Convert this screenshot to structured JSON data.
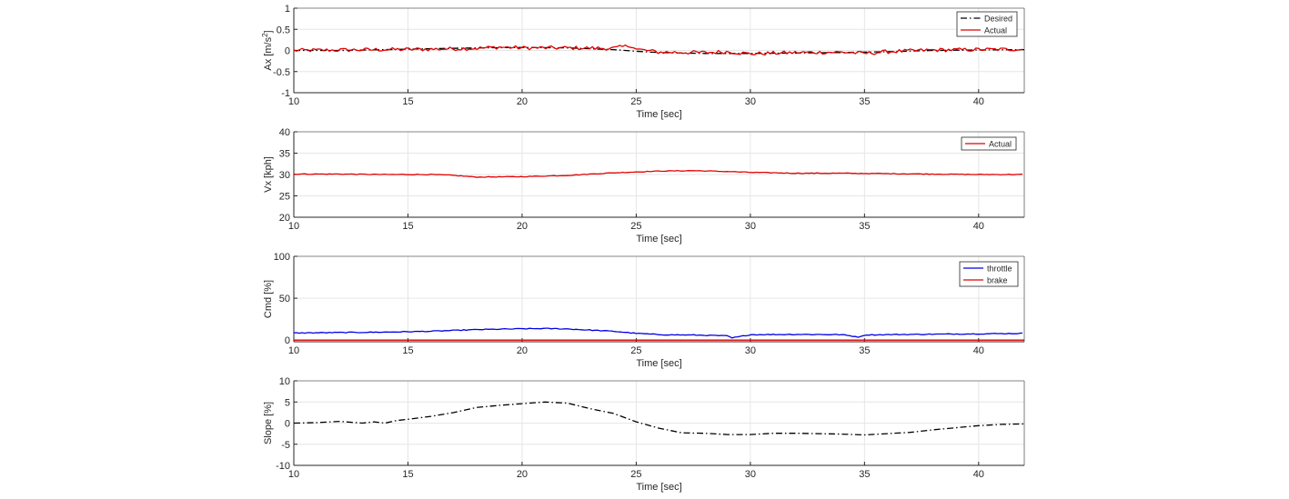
{
  "chart_data": [
    {
      "type": "line",
      "xlabel": "Time [sec]",
      "ylabel": "Ax [m/s",
      "ylabel_sup": "2",
      "ylabel_end": "]",
      "xlim": [
        10,
        42
      ],
      "ylim": [
        -1,
        1
      ],
      "xticks": [
        10,
        15,
        20,
        25,
        30,
        35,
        40
      ],
      "yticks": [
        -1,
        -0.5,
        0,
        0.5,
        1
      ],
      "ytick_labels": [
        "-1",
        "-0.5",
        "0",
        "0.5",
        "1"
      ],
      "grid": true,
      "legend": "top-right",
      "series": [
        {
          "name": "Desired",
          "color": "#000000",
          "style": "dashdot",
          "x": [
            10,
            12,
            14,
            16,
            18,
            20,
            22,
            24,
            25,
            26,
            28,
            30,
            32,
            34,
            36,
            38,
            40,
            42
          ],
          "y": [
            0.0,
            0.0,
            0.02,
            0.04,
            0.06,
            0.07,
            0.06,
            0.02,
            -0.02,
            -0.05,
            -0.07,
            -0.07,
            -0.06,
            -0.05,
            -0.03,
            0.0,
            0.01,
            0.02
          ]
        },
        {
          "name": "Actual",
          "color": "#e00000",
          "style": "solid",
          "noisy": true,
          "noise_amp": 0.045,
          "x": [
            10,
            12,
            14,
            16,
            18,
            19,
            20,
            22,
            24,
            24.8,
            25,
            26,
            28,
            29,
            30,
            32,
            34,
            35,
            36,
            38,
            40,
            42
          ],
          "y": [
            0.0,
            0.01,
            0.02,
            0.03,
            0.05,
            0.08,
            0.06,
            0.06,
            0.05,
            0.12,
            0.03,
            -0.04,
            -0.05,
            -0.03,
            -0.08,
            -0.05,
            -0.04,
            -0.07,
            -0.03,
            0.01,
            0.02,
            0.03
          ]
        }
      ]
    },
    {
      "type": "line",
      "xlabel": "Time [sec]",
      "ylabel": "Vx [kph]",
      "xlim": [
        10,
        42
      ],
      "ylim": [
        20,
        40
      ],
      "xticks": [
        10,
        15,
        20,
        25,
        30,
        35,
        40
      ],
      "yticks": [
        20,
        25,
        30,
        35,
        40
      ],
      "ytick_labels": [
        "20",
        "25",
        "30",
        "35",
        "40"
      ],
      "grid": true,
      "legend": "top-right",
      "series": [
        {
          "name": "Actual",
          "color": "#e00000",
          "style": "solid",
          "noisy": true,
          "noise_amp": 0.08,
          "x": [
            10,
            12,
            14,
            16,
            17,
            18,
            20,
            22,
            24,
            26,
            27.5,
            29,
            30,
            32,
            34,
            36,
            38,
            40,
            42
          ],
          "y": [
            30.1,
            30.1,
            30.0,
            30.0,
            29.8,
            29.4,
            29.5,
            29.8,
            30.4,
            30.8,
            30.9,
            30.7,
            30.5,
            30.3,
            30.3,
            30.2,
            30.1,
            30.0,
            30.0
          ]
        }
      ]
    },
    {
      "type": "line",
      "xlabel": "Time [sec]",
      "ylabel": "Cmd [%]",
      "xlim": [
        10,
        42
      ],
      "ylim": [
        -2,
        100
      ],
      "xticks": [
        10,
        15,
        20,
        25,
        30,
        35,
        40
      ],
      "yticks": [
        0,
        50,
        100
      ],
      "ytick_labels": [
        "0",
        "50",
        "100"
      ],
      "grid": true,
      "legend": "top-right",
      "series": [
        {
          "name": "throttle",
          "color": "#0000e0",
          "style": "solid",
          "noisy": true,
          "noise_amp": 0.5,
          "x": [
            10,
            12,
            14,
            16,
            18,
            20,
            21,
            22,
            24,
            25,
            26,
            28,
            29,
            29.2,
            30,
            32,
            34,
            34.8,
            35,
            36,
            38,
            40,
            42
          ],
          "y": [
            8.5,
            9,
            9.5,
            10.5,
            12.5,
            13.5,
            13.8,
            13.3,
            10.5,
            8,
            6.5,
            5.8,
            5,
            2.5,
            6.5,
            6.8,
            6.5,
            3.5,
            6.2,
            6.5,
            7,
            7.5,
            8
          ]
        },
        {
          "name": "brake",
          "color": "#e00000",
          "style": "solid",
          "x": [
            10,
            42
          ],
          "y": [
            0,
            0
          ]
        }
      ]
    },
    {
      "type": "line",
      "xlabel": "Time [sec]",
      "ylabel": "Slope [%]",
      "xlim": [
        10,
        42
      ],
      "ylim": [
        -10,
        10
      ],
      "xticks": [
        10,
        15,
        20,
        25,
        30,
        35,
        40
      ],
      "yticks": [
        -10,
        -5,
        0,
        5,
        10
      ],
      "ytick_labels": [
        "-10",
        "-5",
        "0",
        "5",
        "10"
      ],
      "grid": true,
      "legend": "none",
      "series": [
        {
          "color": "#000000",
          "style": "dashdot",
          "x": [
            10,
            11,
            12,
            13,
            13.5,
            14,
            14.5,
            15,
            16,
            17,
            18,
            19,
            20,
            21,
            22,
            23,
            24,
            25,
            26,
            27,
            28,
            29,
            30,
            31,
            32,
            33,
            34,
            35,
            36,
            37,
            38,
            39,
            40,
            41,
            42
          ],
          "y": [
            0,
            0.1,
            0.4,
            0,
            0.3,
            0,
            0.6,
            0.9,
            1.6,
            2.5,
            3.7,
            4.2,
            4.6,
            5.0,
            4.7,
            3.4,
            2.3,
            0.3,
            -1.2,
            -2.3,
            -2.4,
            -2.7,
            -2.7,
            -2.4,
            -2.4,
            -2.5,
            -2.6,
            -2.8,
            -2.5,
            -2.2,
            -1.6,
            -1.1,
            -0.6,
            -0.3,
            -0.2
          ]
        }
      ]
    }
  ]
}
